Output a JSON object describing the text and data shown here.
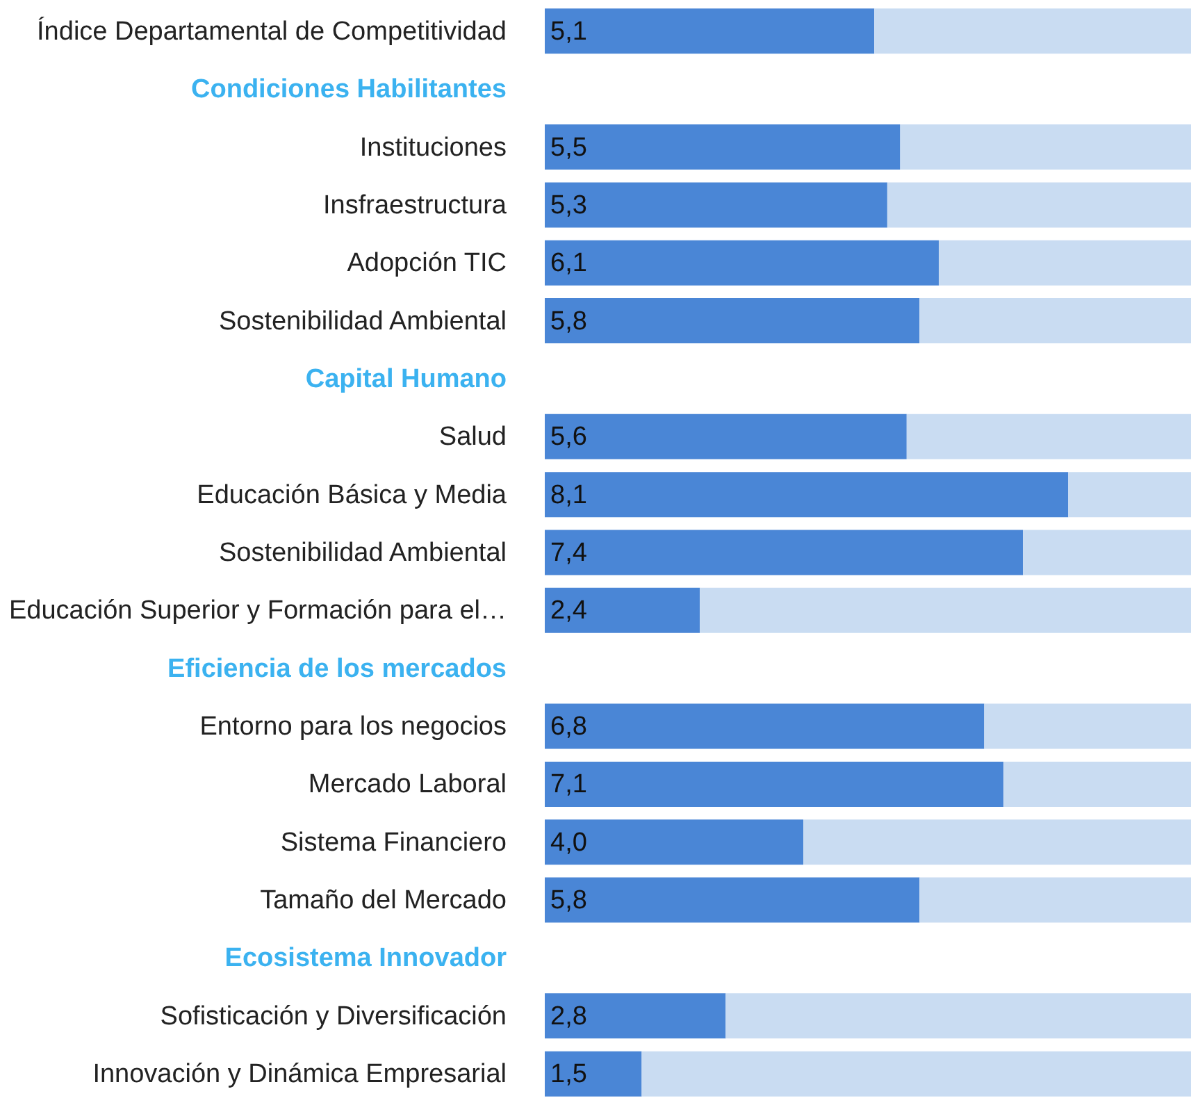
{
  "chart_data": {
    "type": "bar",
    "orientation": "horizontal",
    "stacked": true,
    "categories": [
      "Índice Departamental de Competitividad",
      "Condiciones Habilitantes",
      "Instituciones",
      "Insfraestructura",
      "Adopción TIC",
      "Sostenibilidad Ambiental",
      "Capital Humano",
      "Salud",
      "Educación Básica y Media",
      "Sostenibilidad Ambiental",
      "Educación Superior y Formación para el…",
      "Eficiencia de los mercados",
      "Entorno para los negocios",
      "Mercado Laboral",
      "Sistema Financiero",
      "Tamaño del Mercado",
      "Ecosistema Innovador",
      "Sofisticación y Diversificación",
      "Innovación y Dinámica Empresarial"
    ],
    "series": [
      {
        "color": "#4a86d6",
        "values": [
          5.1,
          null,
          5.5,
          5.3,
          6.1,
          5.8,
          null,
          5.6,
          8.1,
          7.4,
          2.4,
          null,
          6.8,
          7.1,
          4.0,
          5.8,
          null,
          2.8,
          1.5
        ],
        "value_labels": [
          "5,1",
          null,
          "5,5",
          "5,3",
          "6,1",
          "5,8",
          null,
          "5,6",
          "8,1",
          "7,4",
          "2,4",
          null,
          "6,8",
          "7,1",
          "4,0",
          "5,8",
          null,
          "2,8",
          "1,5"
        ]
      },
      {
        "color": "#c9dcf2",
        "values": [
          4.9,
          null,
          4.5,
          4.7,
          3.9,
          4.2,
          null,
          4.4,
          1.9,
          2.6,
          7.6,
          null,
          3.2,
          2.9,
          6.0,
          4.2,
          null,
          7.2,
          8.5
        ]
      }
    ],
    "xlim": [
      0,
      10
    ],
    "tick_labels": "y"
  }
}
